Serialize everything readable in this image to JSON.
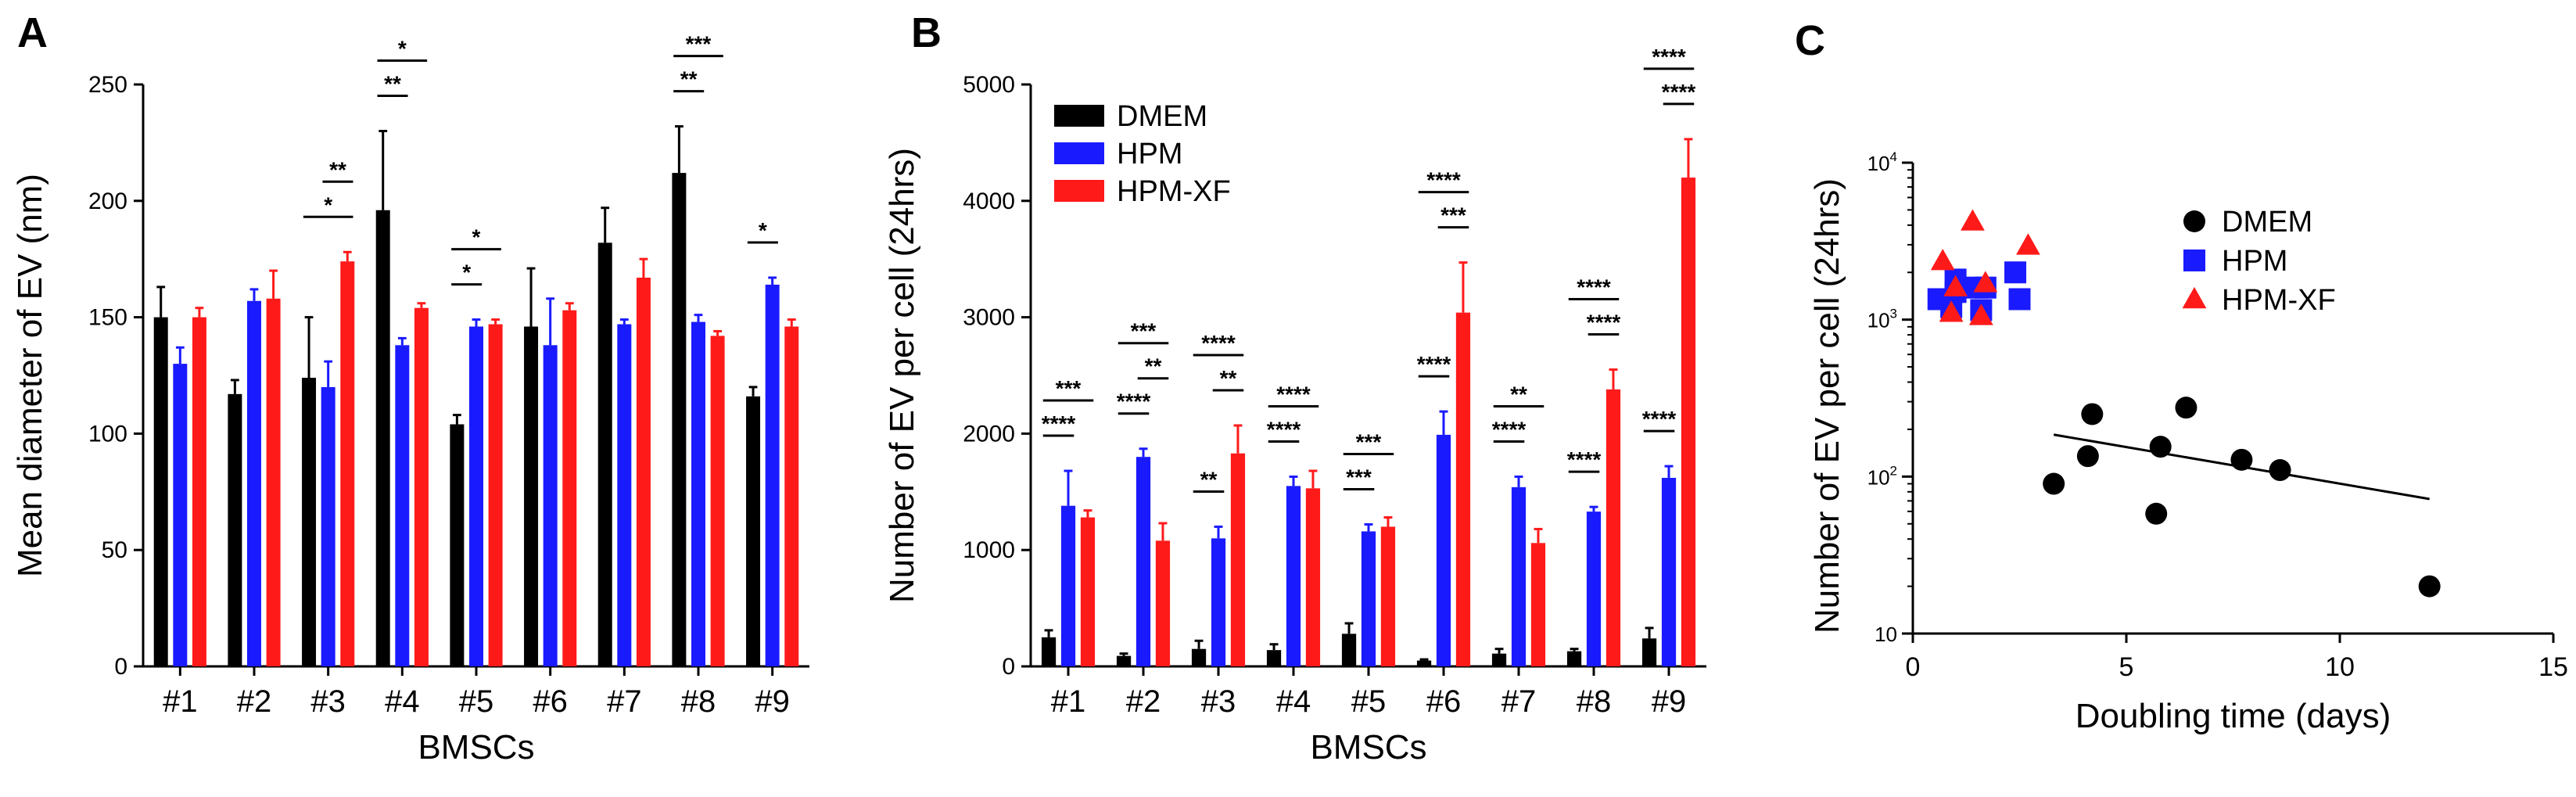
{
  "chart_data": [
    {
      "panel_letter": "A",
      "type": "bar",
      "xlabel": "BMSCs",
      "ylabel": "Mean diameter of EV (nm)",
      "ylim": [
        0,
        250
      ],
      "yticks": [
        0,
        50,
        100,
        150,
        200,
        250
      ],
      "categories": [
        "#1",
        "#2",
        "#3",
        "#4",
        "#5",
        "#6",
        "#7",
        "#8",
        "#9"
      ],
      "series": [
        {
          "color": "#000000",
          "values": [
            150,
            117,
            124,
            196,
            104,
            146,
            182,
            212,
            116
          ],
          "errors": [
            13,
            6,
            26,
            34,
            4,
            25,
            15,
            20,
            4
          ]
        },
        {
          "color": "#1a1aff",
          "values": [
            130,
            157,
            120,
            138,
            146,
            138,
            147,
            148,
            164
          ],
          "errors": [
            7,
            5,
            11,
            3,
            3,
            20,
            2,
            3,
            3
          ]
        },
        {
          "color": "#ff1a1a",
          "values": [
            150,
            158,
            174,
            154,
            147,
            153,
            167,
            142,
            146
          ],
          "errors": [
            4,
            12,
            4,
            2,
            2,
            3,
            8,
            2,
            3
          ]
        }
      ],
      "significance": [
        {
          "category": 2,
          "from": 0,
          "to": 2,
          "label": "*"
        },
        {
          "category": 2,
          "from": 1,
          "to": 2,
          "label": "**"
        },
        {
          "category": 3,
          "from": 0,
          "to": 1,
          "label": "**"
        },
        {
          "category": 3,
          "from": 0,
          "to": 2,
          "label": "*"
        },
        {
          "category": 4,
          "from": 0,
          "to": 1,
          "label": "*"
        },
        {
          "category": 4,
          "from": 0,
          "to": 2,
          "label": "*"
        },
        {
          "category": 7,
          "from": 0,
          "to": 1,
          "label": "**"
        },
        {
          "category": 7,
          "from": 0,
          "to": 2,
          "label": "***"
        },
        {
          "category": 8,
          "from": 0,
          "to": 1,
          "label": "*"
        }
      ]
    },
    {
      "panel_letter": "B",
      "type": "bar",
      "xlabel": "BMSCs",
      "ylabel": "Number of EV per cell (24hrs)",
      "ylim": [
        0,
        5000
      ],
      "yticks": [
        0,
        1000,
        2000,
        3000,
        4000,
        5000
      ],
      "categories": [
        "#1",
        "#2",
        "#3",
        "#4",
        "#5",
        "#6",
        "#7",
        "#8",
        "#9"
      ],
      "legend": {
        "placement": "top-left"
      },
      "series": [
        {
          "name": "DMEM",
          "color": "#000000",
          "values": [
            250,
            90,
            150,
            140,
            280,
            50,
            110,
            130,
            240
          ],
          "errors": [
            60,
            20,
            70,
            50,
            90,
            10,
            40,
            20,
            90
          ]
        },
        {
          "name": "HPM",
          "color": "#1a1aff",
          "values": [
            1380,
            1800,
            1100,
            1550,
            1160,
            1990,
            1540,
            1330,
            1620
          ],
          "errors": [
            300,
            70,
            100,
            80,
            60,
            200,
            90,
            40,
            100
          ]
        },
        {
          "name": "HPM-XF",
          "color": "#ff1a1a",
          "values": [
            1280,
            1080,
            1830,
            1530,
            1200,
            3040,
            1060,
            2380,
            4200
          ],
          "errors": [
            60,
            150,
            240,
            150,
            80,
            430,
            120,
            170,
            330
          ]
        }
      ],
      "significance": [
        {
          "category": 0,
          "from": 0,
          "to": 1,
          "label": "****"
        },
        {
          "category": 0,
          "from": 0,
          "to": 2,
          "label": "***"
        },
        {
          "category": 1,
          "from": 0,
          "to": 1,
          "label": "****"
        },
        {
          "category": 1,
          "from": 1,
          "to": 2,
          "label": "**"
        },
        {
          "category": 1,
          "from": 0,
          "to": 2,
          "label": "***"
        },
        {
          "category": 2,
          "from": 0,
          "to": 1,
          "label": "**"
        },
        {
          "category": 2,
          "from": 1,
          "to": 2,
          "label": "**"
        },
        {
          "category": 2,
          "from": 0,
          "to": 2,
          "label": "****"
        },
        {
          "category": 3,
          "from": 0,
          "to": 1,
          "label": "****"
        },
        {
          "category": 3,
          "from": 0,
          "to": 2,
          "label": "****"
        },
        {
          "category": 4,
          "from": 0,
          "to": 1,
          "label": "***"
        },
        {
          "category": 4,
          "from": 0,
          "to": 2,
          "label": "***"
        },
        {
          "category": 5,
          "from": 0,
          "to": 1,
          "label": "****"
        },
        {
          "category": 5,
          "from": 1,
          "to": 2,
          "label": "***"
        },
        {
          "category": 5,
          "from": 0,
          "to": 2,
          "label": "****"
        },
        {
          "category": 6,
          "from": 0,
          "to": 1,
          "label": "****"
        },
        {
          "category": 6,
          "from": 0,
          "to": 2,
          "label": "**"
        },
        {
          "category": 7,
          "from": 0,
          "to": 1,
          "label": "****"
        },
        {
          "category": 7,
          "from": 1,
          "to": 2,
          "label": "****"
        },
        {
          "category": 7,
          "from": 0,
          "to": 2,
          "label": "****"
        },
        {
          "category": 8,
          "from": 0,
          "to": 1,
          "label": "****"
        },
        {
          "category": 8,
          "from": 1,
          "to": 2,
          "label": "****"
        },
        {
          "category": 8,
          "from": 0,
          "to": 2,
          "label": "****"
        }
      ]
    },
    {
      "panel_letter": "C",
      "type": "scatter",
      "xlabel": "Doubling time (days)",
      "ylabel": "Number of EV per cell (24hrs)",
      "xlim": [
        0,
        15
      ],
      "xticks": [
        0,
        5,
        10,
        15
      ],
      "ylog": true,
      "ylim": [
        10,
        10000
      ],
      "ytick_labels": [
        {
          "value": 10,
          "base": "10",
          "exp": ""
        },
        {
          "value": 100,
          "base": "10",
          "exp": "2"
        },
        {
          "value": 1000,
          "base": "10",
          "exp": "3"
        },
        {
          "value": 10000,
          "base": "10",
          "exp": "4"
        }
      ],
      "legend": {
        "placement": "top-right"
      },
      "series": [
        {
          "name": "DMEM",
          "color": "#000000",
          "marker": "circle",
          "x": [
            3.3,
            4.1,
            4.2,
            5.7,
            5.8,
            6.4,
            7.7,
            8.6,
            12.1
          ],
          "y": [
            90,
            135,
            250,
            58,
            155,
            275,
            128,
            110,
            20
          ]
        },
        {
          "name": "HPM",
          "color": "#1a1aff",
          "marker": "square",
          "x": [
            0.6,
            0.9,
            1.0,
            1.0,
            1.5,
            1.6,
            1.7,
            2.4,
            2.5
          ],
          "y": [
            1350,
            1200,
            1500,
            1800,
            1600,
            1150,
            1600,
            2000,
            1350
          ]
        },
        {
          "name": "HPM-XF",
          "color": "#ff1a1a",
          "marker": "triangle",
          "x": [
            0.7,
            0.9,
            1.0,
            1.4,
            1.6,
            1.7,
            2.7
          ],
          "y": [
            2350,
            1100,
            1600,
            4200,
            1050,
            1700,
            2950
          ]
        }
      ],
      "trendline": {
        "series": "DMEM",
        "x": [
          3.3,
          12.1
        ],
        "y": [
          185,
          72
        ]
      }
    }
  ]
}
